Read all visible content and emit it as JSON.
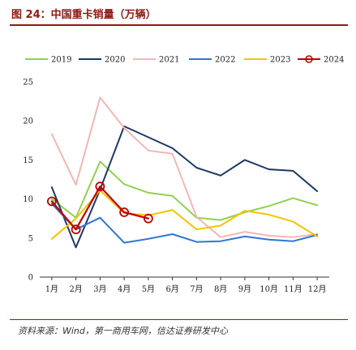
{
  "figure": {
    "title": "图 24：中国重卡销量（万辆）",
    "source": "资料来源：Wind，第一商用车网，信达证券研发中心"
  },
  "chart_data": {
    "type": "line",
    "title": "",
    "xlabel": "",
    "ylabel": "",
    "categories": [
      "1月",
      "2月",
      "3月",
      "4月",
      "5月",
      "6月",
      "7月",
      "8月",
      "9月",
      "10月",
      "11月",
      "12月"
    ],
    "ylim": [
      0,
      25
    ],
    "yticks": [
      "0",
      "5",
      "10",
      "15",
      "20",
      "25"
    ],
    "grid": false,
    "legend_position": "top",
    "series": [
      {
        "name": "2019",
        "color": "#92d050",
        "marker": "none",
        "values": [
          10.0,
          7.6,
          14.8,
          11.9,
          10.8,
          10.4,
          7.6,
          7.3,
          8.3,
          9.1,
          10.1,
          9.2
        ]
      },
      {
        "name": "2020",
        "color": "#1f3864",
        "marker": "none",
        "values": [
          11.5,
          3.8,
          11.2,
          19.3,
          17.9,
          16.5,
          14.0,
          13.0,
          15.0,
          13.8,
          13.6,
          11.0
        ]
      },
      {
        "name": "2021",
        "color": "#f4b6b6",
        "marker": "none",
        "values": [
          18.3,
          11.8,
          23.0,
          19.1,
          16.2,
          15.8,
          7.7,
          5.1,
          5.8,
          5.3,
          5.1,
          5.5
        ]
      },
      {
        "name": "2022",
        "color": "#2e75d6",
        "marker": "none",
        "values": [
          9.4,
          6.1,
          7.6,
          4.4,
          4.9,
          5.5,
          4.5,
          4.6,
          5.2,
          4.8,
          4.6,
          5.4
        ]
      },
      {
        "name": "2023",
        "color": "#f5c400",
        "marker": "none",
        "values": [
          4.9,
          7.5,
          11.1,
          8.2,
          7.9,
          8.6,
          6.1,
          6.6,
          8.5,
          8.0,
          7.1,
          5.2
        ]
      },
      {
        "name": "2024",
        "color": "#c00000",
        "marker": "circle",
        "values": [
          9.7,
          6.1,
          11.6,
          8.3,
          7.5,
          null,
          null,
          null,
          null,
          null,
          null,
          null
        ]
      }
    ]
  }
}
